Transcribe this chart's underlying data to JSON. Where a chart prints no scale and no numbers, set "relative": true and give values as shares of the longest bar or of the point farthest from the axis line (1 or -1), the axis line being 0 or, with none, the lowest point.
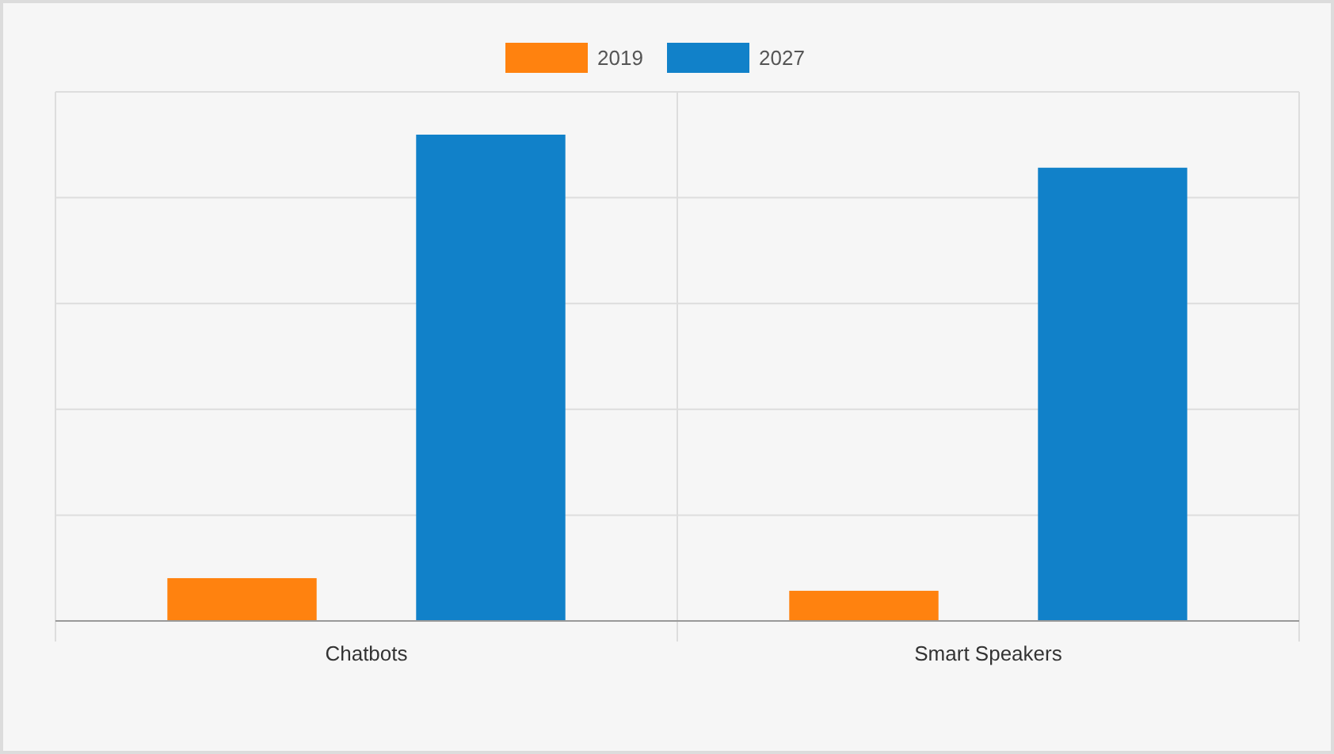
{
  "chart_data": {
    "type": "bar",
    "relative": true,
    "categories": [
      "Chatbots",
      "Smart Speakers"
    ],
    "series": [
      {
        "name": "2019",
        "color": "#ff820f",
        "values": [
          0.088,
          0.062
        ]
      },
      {
        "name": "2027",
        "color": "#1181c9",
        "values": [
          1,
          0.932
        ]
      }
    ],
    "grid": true,
    "legend": "top"
  }
}
